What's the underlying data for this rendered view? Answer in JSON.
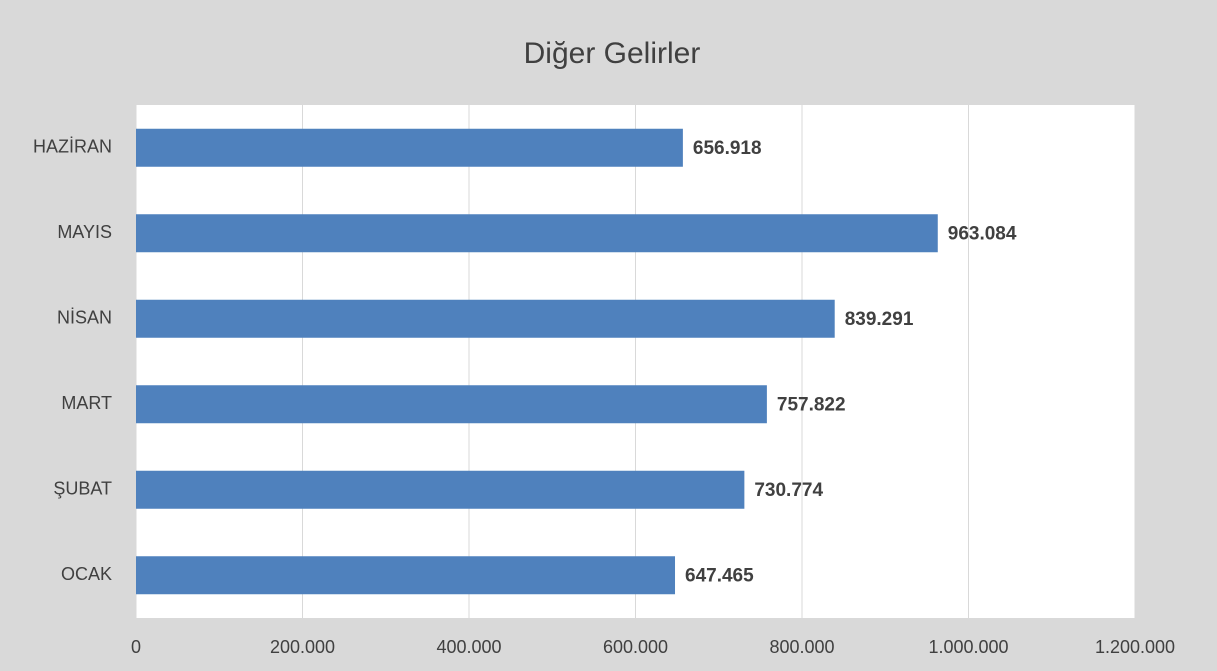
{
  "chart_data": {
    "type": "bar",
    "orientation": "horizontal",
    "title": "Diğer Gelirler",
    "categories": [
      "OCAK",
      "ŞUBAT",
      "MART",
      "NİSAN",
      "MAYIS",
      "HAZİRAN"
    ],
    "values": [
      647465,
      730774,
      757822,
      839291,
      963084,
      656918
    ],
    "value_labels": [
      "647.465",
      "730.774",
      "757.822",
      "839.291",
      "963.084",
      "656.918"
    ],
    "color": "#4f81bd",
    "xlim": [
      0,
      1200000
    ],
    "xticks": [
      0,
      {
        "value": 200000,
        "label": "200.000"
      },
      {
        "value": 400000,
        "label": "400.000"
      },
      {
        "value": 600000,
        "label": "600.000"
      },
      {
        "value": 800000,
        "label": "800.000"
      },
      {
        "value": 1000000,
        "label": "1.000.000"
      },
      {
        "value": 1200000,
        "label": "1.200.000"
      }
    ],
    "grid": true
  }
}
